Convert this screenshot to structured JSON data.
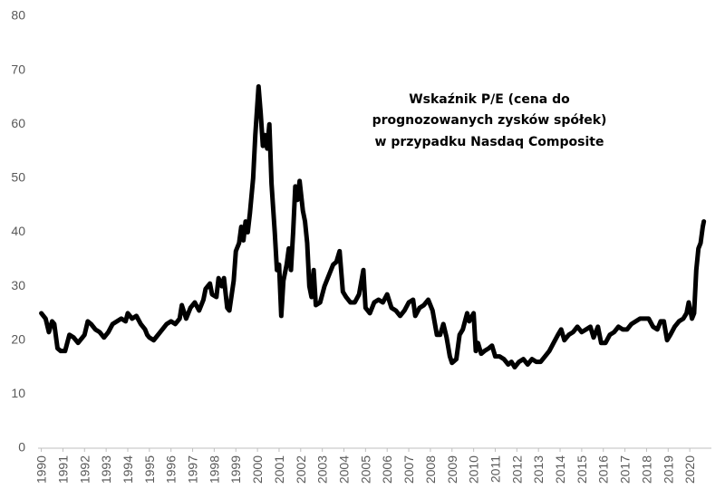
{
  "chart_data": {
    "type": "line",
    "title": [
      "Wskaźnik P/E (cena do",
      "prognozowanych zysków spółek)",
      "w przypadku Nasdaq Composite"
    ],
    "color": "#000000",
    "xlim": [
      1989.85,
      2021.0
    ],
    "xticks": [
      1990,
      1991,
      1992,
      1993,
      1994,
      1995,
      1996,
      1997,
      1998,
      1999,
      2000,
      2001,
      2002,
      2003,
      2004,
      2005,
      2006,
      2007,
      2008,
      2009,
      2010,
      2011,
      2012,
      2013,
      2014,
      2015,
      2016,
      2017,
      2018,
      2019,
      2020
    ],
    "ylim": [
      0,
      80
    ],
    "yticks": [
      0,
      10,
      20,
      30,
      40,
      50,
      60,
      70,
      80
    ],
    "grid": false,
    "x": [
      1990.0,
      1990.2,
      1990.35,
      1990.5,
      1990.6,
      1990.75,
      1990.9,
      1991.1,
      1991.3,
      1991.5,
      1991.7,
      1991.9,
      1992.0,
      1992.15,
      1992.3,
      1992.5,
      1992.7,
      1992.9,
      1993.1,
      1993.3,
      1993.5,
      1993.7,
      1993.9,
      1994.0,
      1994.2,
      1994.4,
      1994.6,
      1994.8,
      1994.9,
      1995.0,
      1995.2,
      1995.5,
      1995.8,
      1996.0,
      1996.2,
      1996.4,
      1996.5,
      1996.7,
      1996.9,
      1997.1,
      1997.3,
      1997.5,
      1997.6,
      1997.8,
      1997.9,
      1998.1,
      1998.2,
      1998.35,
      1998.45,
      1998.6,
      1998.7,
      1998.9,
      1999.0,
      1999.15,
      1999.25,
      1999.35,
      1999.45,
      1999.55,
      1999.65,
      1999.8,
      1999.9,
      2000.05,
      2000.15,
      2000.25,
      2000.35,
      2000.45,
      2000.55,
      2000.65,
      2000.8,
      2000.9,
      2001.0,
      2001.1,
      2001.2,
      2001.35,
      2001.45,
      2001.55,
      2001.65,
      2001.75,
      2001.85,
      2001.95,
      2002.1,
      2002.2,
      2002.3,
      2002.4,
      2002.5,
      2002.6,
      2002.7,
      2002.9,
      2003.1,
      2003.3,
      2003.5,
      2003.65,
      2003.8,
      2003.95,
      2004.1,
      2004.3,
      2004.5,
      2004.7,
      2004.9,
      2005.0,
      2005.2,
      2005.4,
      2005.6,
      2005.8,
      2006.0,
      2006.2,
      2006.4,
      2006.6,
      2006.8,
      2007.0,
      2007.2,
      2007.3,
      2007.5,
      2007.7,
      2007.9,
      2008.1,
      2008.3,
      2008.45,
      2008.6,
      2008.75,
      2008.9,
      2009.0,
      2009.2,
      2009.35,
      2009.5,
      2009.7,
      2009.8,
      2010.0,
      2010.1,
      2010.2,
      2010.35,
      2010.5,
      2010.7,
      2010.85,
      2011.0,
      2011.2,
      2011.4,
      2011.6,
      2011.75,
      2011.9,
      2012.1,
      2012.3,
      2012.5,
      2012.7,
      2012.9,
      2013.1,
      2013.3,
      2013.5,
      2013.7,
      2013.9,
      2014.05,
      2014.2,
      2014.4,
      2014.6,
      2014.8,
      2015.0,
      2015.2,
      2015.4,
      2015.55,
      2015.75,
      2015.9,
      2016.1,
      2016.3,
      2016.5,
      2016.7,
      2016.9,
      2017.1,
      2017.3,
      2017.5,
      2017.7,
      2017.9,
      2018.1,
      2018.3,
      2018.5,
      2018.65,
      2018.8,
      2018.95,
      2019.1,
      2019.3,
      2019.5,
      2019.7,
      2019.85,
      2019.95,
      2020.1,
      2020.2,
      2020.3,
      2020.4,
      2020.5,
      2020.6,
      2020.65
    ],
    "values": [
      25,
      24,
      21.5,
      23.5,
      23,
      18.5,
      18,
      18,
      21,
      20.5,
      19.5,
      20.5,
      21,
      23.5,
      23,
      22,
      21.5,
      20.5,
      21.5,
      23,
      23.5,
      24,
      23.5,
      25,
      24,
      24.5,
      23,
      22,
      21,
      20.5,
      20,
      21.5,
      23,
      23.5,
      23,
      24,
      26.5,
      24,
      26,
      27,
      25.5,
      27.5,
      29.5,
      30.5,
      28.5,
      28,
      31.5,
      30,
      31.5,
      26,
      25.5,
      31,
      36.5,
      38,
      41,
      38.5,
      42,
      40,
      43.5,
      50,
      58,
      67,
      62,
      56,
      58,
      55.5,
      60,
      49,
      40,
      33,
      34,
      24.5,
      31,
      34,
      37,
      33,
      40,
      48.5,
      46,
      49.5,
      44,
      42,
      38,
      30,
      28,
      33,
      26.5,
      27,
      30,
      32,
      34,
      34.5,
      36.5,
      29,
      28,
      27,
      27,
      28.5,
      33,
      26,
      25,
      27,
      27.5,
      27,
      28.5,
      26,
      25.5,
      24.5,
      25.5,
      27,
      27.5,
      24.5,
      26,
      26.5,
      27.5,
      25.5,
      21,
      21,
      23,
      20.5,
      17,
      15.8,
      16.5,
      21,
      22,
      25,
      23.5,
      25,
      18,
      19.5,
      17.5,
      18,
      18.5,
      19,
      17,
      17,
      16.5,
      15.5,
      16,
      15,
      16,
      16.5,
      15.5,
      16.5,
      16,
      16,
      17,
      18,
      19.5,
      21,
      22,
      20,
      21,
      21.5,
      22.5,
      21.5,
      22,
      22.5,
      20.5,
      22.5,
      19.5,
      19.5,
      21,
      21.5,
      22.5,
      22,
      22,
      23,
      23.5,
      24,
      24,
      24,
      22.5,
      22,
      23.5,
      23.5,
      20,
      21,
      22.5,
      23.5,
      24,
      25,
      27,
      24,
      25,
      33,
      37,
      38,
      41,
      42
    ]
  }
}
